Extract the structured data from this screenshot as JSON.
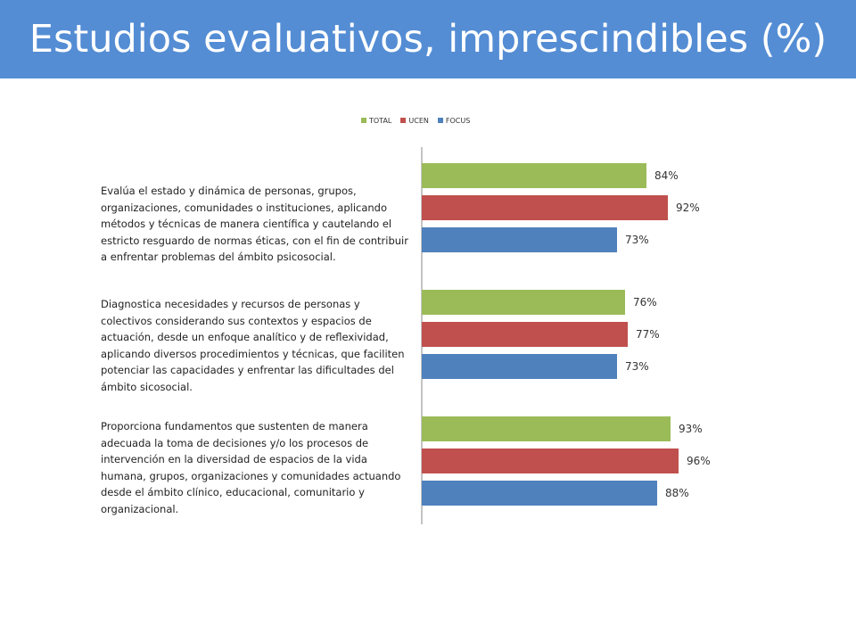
{
  "header": {
    "title": "Estudios evaluativos, imprescindibles (%)"
  },
  "colors": {
    "header_bg": "#548dd4",
    "TOTAL": "#9bbb59",
    "UCEN": "#c0504d",
    "FOCUS": "#4f81bd"
  },
  "chart_data": {
    "type": "bar",
    "orientation": "horizontal",
    "title": "",
    "legend_position": "top",
    "xlim": [
      0,
      100
    ],
    "grid": false,
    "categories": [
      "Evalúa el estado y dinámica de personas, grupos, organizaciones, comunidades o instituciones, aplicando métodos y técnicas de manera científica y cautelando el estricto resguardo de normas éticas, con el fin de contribuir a enfrentar problemas del ámbito psicosocial.",
      "Diagnostica necesidades y recursos de personas y colectivos considerando sus contextos y espacios de actuación, desde un enfoque analítico y de reflexividad, aplicando diversos procedimientos y técnicas, que faciliten potenciar las capacidades y enfrentar las dificultades del ámbito sicosocial.",
      "Proporciona fundamentos que sustenten de manera adecuada la toma de decisiones y/o los procesos de intervención en la diversidad de espacios de la vida humana, grupos, organizaciones y comunidades actuando desde el ámbito clínico, educacional, comunitario y organizacional."
    ],
    "series": [
      {
        "name": "TOTAL",
        "values": [
          84,
          76,
          93
        ],
        "labels": [
          "84%",
          "76%",
          "93%"
        ]
      },
      {
        "name": "UCEN",
        "values": [
          92,
          77,
          96
        ],
        "labels": [
          "92%",
          "77%",
          "96%"
        ]
      },
      {
        "name": "FOCUS",
        "values": [
          73,
          73,
          88
        ],
        "labels": [
          "73%",
          "73%",
          "88%"
        ]
      }
    ]
  }
}
